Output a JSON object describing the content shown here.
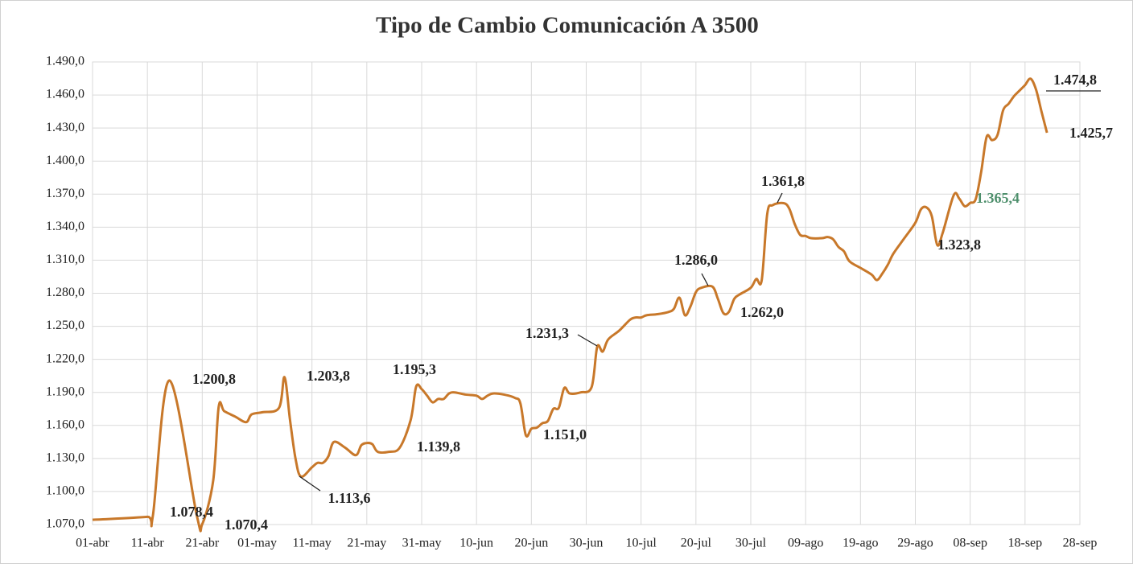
{
  "chart_data": {
    "type": "line",
    "title": "Tipo de Cambio Comunicación A 3500",
    "color": "#c8782a",
    "grid": true,
    "xlim": [
      "01-abr",
      "28-sep"
    ],
    "xticks": [
      "01-abr",
      "11-abr",
      "21-abr",
      "01-may",
      "11-may",
      "21-may",
      "31-may",
      "10-jun",
      "20-jun",
      "30-jun",
      "10-jul",
      "20-jul",
      "30-jul",
      "09-ago",
      "19-ago",
      "29-ago",
      "08-sep",
      "18-sep",
      "28-sep"
    ],
    "ylim": [
      1070,
      1490
    ],
    "yticks": [
      {
        "value": 1070,
        "label": "1.070,0"
      },
      {
        "value": 1100,
        "label": "1.100,0"
      },
      {
        "value": 1130,
        "label": "1.130,0"
      },
      {
        "value": 1160,
        "label": "1.160,0"
      },
      {
        "value": 1190,
        "label": "1.190,0"
      },
      {
        "value": 1220,
        "label": "1.220,0"
      },
      {
        "value": 1250,
        "label": "1.250,0"
      },
      {
        "value": 1280,
        "label": "1.280,0"
      },
      {
        "value": 1310,
        "label": "1.310,0"
      },
      {
        "value": 1340,
        "label": "1.340,0"
      },
      {
        "value": 1370,
        "label": "1.370,0"
      },
      {
        "value": 1400,
        "label": "1.400,0"
      },
      {
        "value": 1430,
        "label": "1.430,0"
      },
      {
        "value": 1460,
        "label": "1.460,0"
      },
      {
        "value": 1490,
        "label": "1.490,0"
      }
    ],
    "x": [
      "01-abr",
      "04-abr",
      "11-abr",
      "12-abr",
      "15-abr",
      "20-abr",
      "21-abr",
      "23-abr",
      "24-abr",
      "25-abr",
      "27-abr",
      "29-abr",
      "30-abr",
      "02-may",
      "05-may",
      "06-may",
      "07-may",
      "08-may",
      "09-may",
      "11-may",
      "12-may",
      "13-may",
      "14-may",
      "15-may",
      "17-may",
      "19-may",
      "20-may",
      "21-may",
      "22-may",
      "23-may",
      "25-may",
      "27-may",
      "29-may",
      "30-may",
      "31-may",
      "01-jun",
      "02-jun",
      "03-jun",
      "04-jun",
      "05-jun",
      "06-jun",
      "08-jun",
      "10-jun",
      "11-jun",
      "12-jun",
      "13-jun",
      "15-jun",
      "17-jun",
      "18-jun",
      "19-jun",
      "20-jun",
      "21-jun",
      "22-jun",
      "23-jun",
      "24-jun",
      "25-jun",
      "26-jun",
      "27-jun",
      "29-jun",
      "01-jul",
      "02-jul",
      "03-jul",
      "04-jul",
      "06-jul",
      "08-jul",
      "09-jul",
      "10-jul",
      "11-jul",
      "13-jul",
      "15-jul",
      "16-jul",
      "17-jul",
      "18-jul",
      "19-jul",
      "20-jul",
      "21-jul",
      "23-jul",
      "24-jul",
      "25-jul",
      "26-jul",
      "27-jul",
      "28-jul",
      "30-jul",
      "31-jul",
      "01-ago",
      "02-ago",
      "03-ago",
      "05-ago",
      "06-ago",
      "07-ago",
      "08-ago",
      "09-ago",
      "10-ago",
      "12-ago",
      "13-ago",
      "14-ago",
      "15-ago",
      "16-ago",
      "17-ago",
      "19-ago",
      "21-ago",
      "22-ago",
      "23-ago",
      "24-ago",
      "25-ago",
      "27-ago",
      "29-ago",
      "30-ago",
      "31-ago",
      "01-sep",
      "02-sep",
      "03-sep",
      "05-sep",
      "06-sep",
      "07-sep",
      "08-sep",
      "09-sep",
      "10-sep",
      "11-sep",
      "12-sep",
      "13-sep",
      "14-sep",
      "15-sep",
      "16-sep",
      "17-sep",
      "18-sep",
      "19-sep",
      "20-sep",
      "21-sep",
      "22-sep"
    ],
    "values": [
      1074.4,
      1075,
      1077,
      1078,
      1200.8,
      1078.4,
      1070.4,
      1110,
      1177,
      1173,
      1168,
      1163,
      1170,
      1172,
      1176,
      1203.8,
      1165,
      1130,
      1113.6,
      1122,
      1126,
      1126,
      1132,
      1145,
      1140,
      1133,
      1142,
      1144,
      1143,
      1136,
      1136,
      1139.8,
      1165,
      1195.3,
      1193,
      1187,
      1181,
      1184,
      1184,
      1189,
      1190,
      1188,
      1187,
      1184,
      1187,
      1189,
      1188,
      1185,
      1180,
      1151,
      1157,
      1158,
      1162,
      1164,
      1175,
      1176,
      1194,
      1189,
      1190,
      1195,
      1231.3,
      1227,
      1238,
      1246,
      1256,
      1258,
      1258,
      1260,
      1261,
      1263,
      1266,
      1276,
      1260,
      1268,
      1281,
      1285,
      1286,
      1275,
      1262,
      1263,
      1275,
      1279,
      1285,
      1293,
      1292,
      1352,
      1360,
      1361.8,
      1357,
      1343,
      1333,
      1332,
      1330,
      1330,
      1331,
      1329,
      1322,
      1318,
      1309,
      1303,
      1297,
      1292,
      1298,
      1306,
      1316,
      1330,
      1344,
      1356,
      1358,
      1350,
      1323.8,
      1335,
      1369,
      1366,
      1359,
      1362,
      1365.4,
      1390,
      1422,
      1419,
      1424,
      1446,
      1452,
      1459,
      1464,
      1469,
      1474.8,
      1465,
      1445,
      1425.7
    ],
    "value_labels": [
      null,
      null,
      null,
      null,
      "1.200,8",
      "1.078,4",
      "1.070,4",
      null,
      null,
      null,
      null,
      null,
      null,
      null,
      null,
      "1.203,8",
      null,
      null,
      "1.113,6",
      null,
      null,
      null,
      null,
      null,
      null,
      null,
      null,
      null,
      null,
      null,
      null,
      "1.139,8",
      null,
      "1.195,3",
      null,
      null,
      null,
      null,
      null,
      null,
      null,
      null,
      null,
      null,
      null,
      null,
      null,
      null,
      null,
      "1.151,0",
      null,
      null,
      null,
      null,
      null,
      null,
      null,
      null,
      null,
      null,
      "1.231,3",
      null,
      null,
      null,
      null,
      null,
      null,
      null,
      null,
      null,
      null,
      null,
      null,
      null,
      null,
      null,
      "1.286,0",
      null,
      "1.262,0",
      null,
      null,
      null,
      null,
      null,
      null,
      null,
      null,
      "1.361,8",
      null,
      null,
      null,
      null,
      null,
      null,
      null,
      null,
      null,
      null,
      null,
      null,
      null,
      null,
      null,
      null,
      null,
      null,
      null,
      null,
      null,
      null,
      "1.323,8",
      null,
      null,
      null,
      null,
      null,
      "1.365,4",
      null,
      null,
      null,
      null,
      null,
      null,
      null,
      null,
      null,
      "1.474,8",
      null,
      null,
      "1.425,7"
    ]
  }
}
